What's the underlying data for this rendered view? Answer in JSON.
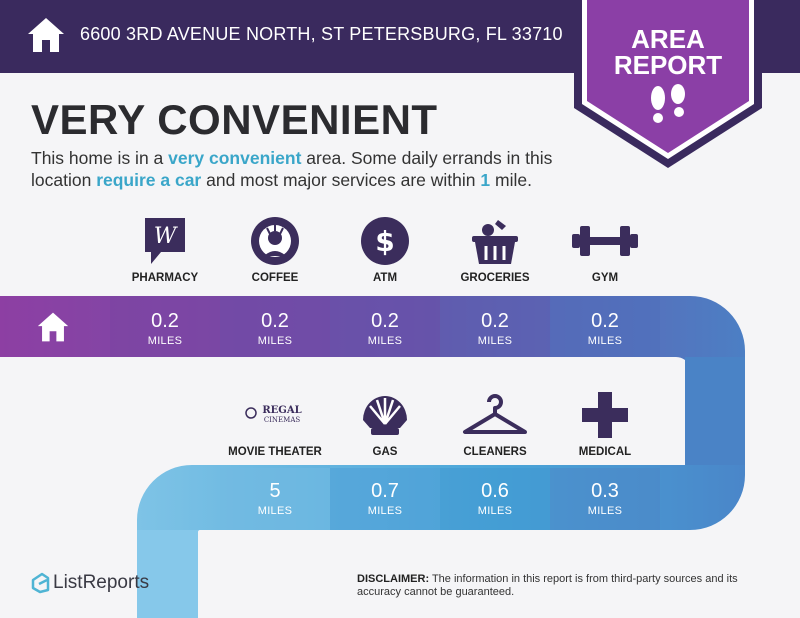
{
  "header": {
    "address": "6600 3RD AVENUE NORTH, ST PETERSBURG, FL 33710",
    "background": "#3a2a5e"
  },
  "badge": {
    "line1": "AREA",
    "line2": "REPORT",
    "color": "#8b3fa6",
    "icon": "footprints-icon"
  },
  "headline": "VERY CONVENIENT",
  "summary": {
    "part1": "This home is in a ",
    "hl1": "very convenient",
    "part2": " area. Some daily errands in this location ",
    "hl2": "require a car",
    "part3": " and most major services are within ",
    "hl3": "1",
    "part4": " mile."
  },
  "unit_label": "MILES",
  "row1": [
    {
      "label": "PHARMACY",
      "value": "0.2",
      "icon": "walgreens-logo-icon"
    },
    {
      "label": "COFFEE",
      "value": "0.2",
      "icon": "starbucks-logo-icon"
    },
    {
      "label": "ATM",
      "value": "0.2",
      "icon": "dollar-icon"
    },
    {
      "label": "GROCERIES",
      "value": "0.2",
      "icon": "basket-icon"
    },
    {
      "label": "GYM",
      "value": "0.2",
      "icon": "dumbbell-icon"
    }
  ],
  "row2": [
    {
      "label": "MOVIE THEATER",
      "value": "5",
      "icon": "regal-cinemas-logo-icon",
      "logo_line1": "REGAL",
      "logo_line2": "CINEMAS"
    },
    {
      "label": "GAS",
      "value": "0.7",
      "icon": "shell-logo-icon"
    },
    {
      "label": "CLEANERS",
      "value": "0.6",
      "icon": "hanger-icon"
    },
    {
      "label": "MEDICAL",
      "value": "0.3",
      "icon": "medical-cross-icon"
    }
  ],
  "footer": {
    "logo": "ListReports",
    "disclaimer_label": "DISCLAIMER:",
    "disclaimer_text": " The information in this report is from third-party sources and its accuracy cannot be guaranteed."
  },
  "colors": {
    "accent": "#3aa6c9",
    "purple": "#8b3fa6",
    "dark": "#3a2a5e",
    "icon": "#3b2d5c"
  }
}
